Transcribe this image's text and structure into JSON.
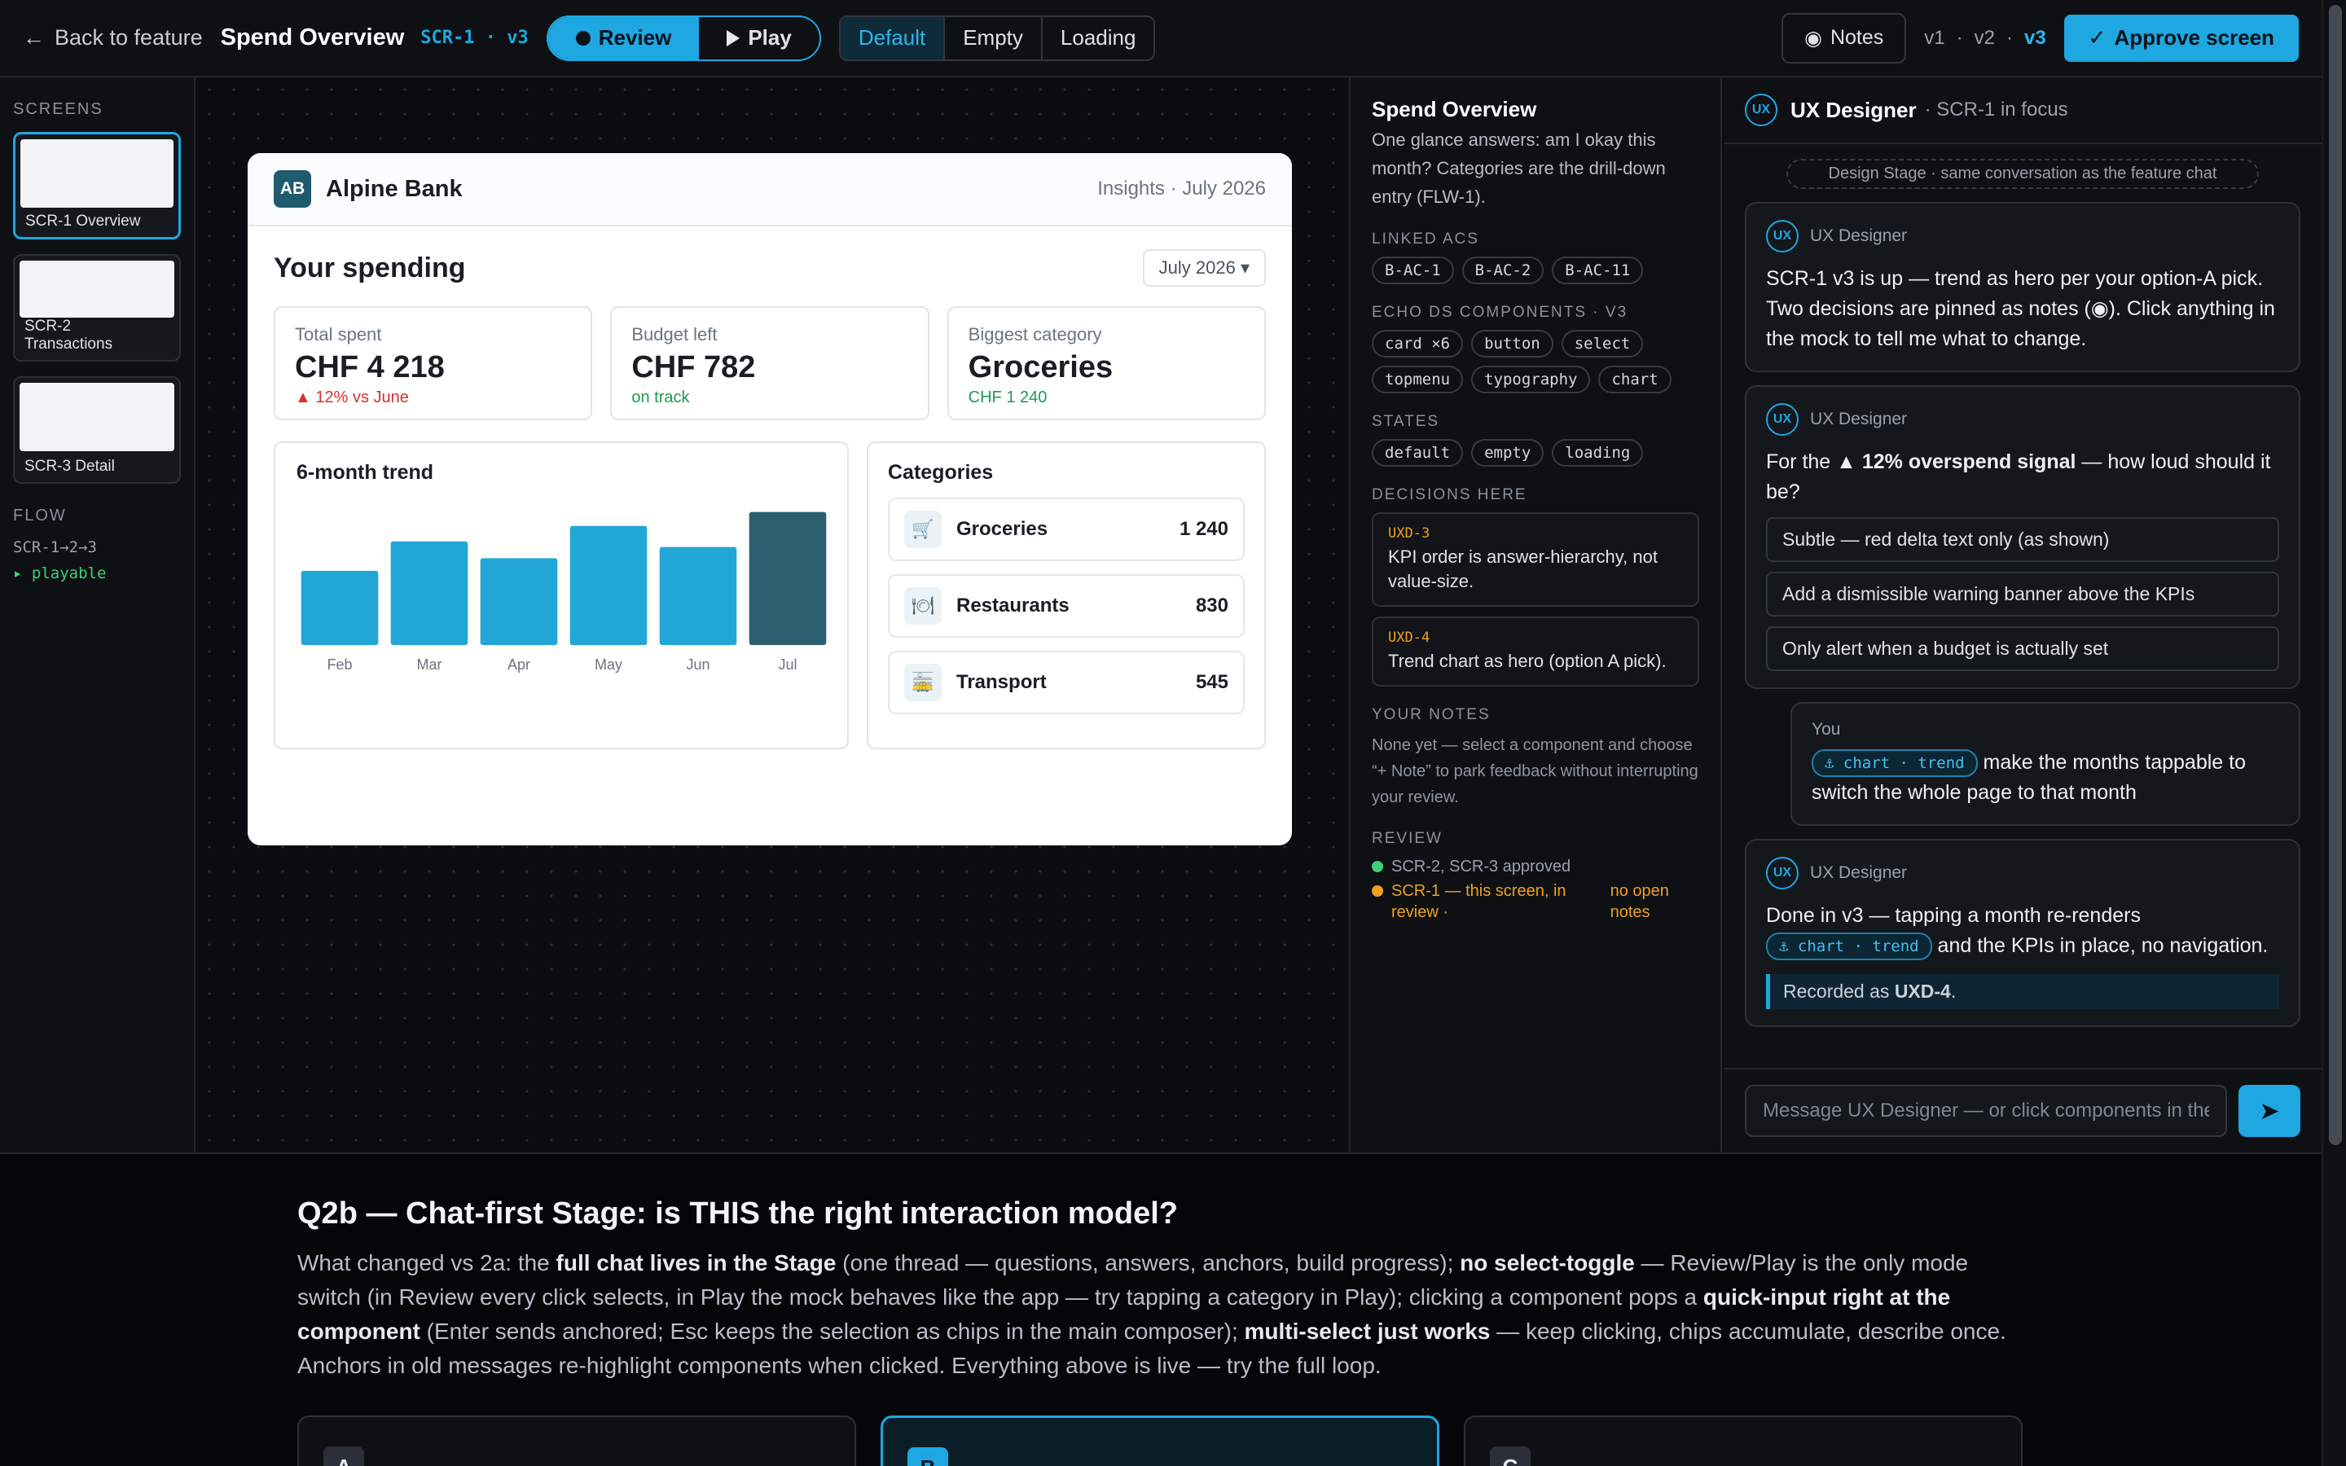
{
  "topbar": {
    "back_label": "Back to feature",
    "title": "Spend Overview",
    "screen_ref": "SCR-1 · v3",
    "mode_review": "Review",
    "mode_play": "Play",
    "states": [
      "Default",
      "Empty",
      "Loading"
    ],
    "active_state": "Default",
    "notes_label": "Notes",
    "versions": [
      "v1",
      "v2",
      "v3"
    ],
    "active_version": "v3",
    "approve_label": "Approve screen"
  },
  "left": {
    "screens_label": "SCREENS",
    "screens": [
      {
        "label": "SCR-1 Overview",
        "selected": true
      },
      {
        "label": "SCR-2 Transactions",
        "selected": false
      },
      {
        "label": "SCR-3 Detail",
        "selected": false
      }
    ],
    "flow_label": "FLOW",
    "flow_path": "SCR-1→2→3",
    "playable": "▸ playable"
  },
  "mock": {
    "logo": "AB",
    "bank_name": "Alpine Bank",
    "insights": "Insights · July 2026",
    "heading": "Your spending",
    "month_select": "July 2026 ▾",
    "kpis": [
      {
        "label": "Total spent",
        "value": "CHF 4 218",
        "sub": "▲ 12% vs June",
        "tone": "red"
      },
      {
        "label": "Budget left",
        "value": "CHF 782",
        "sub": "on track",
        "tone": "green"
      },
      {
        "label": "Biggest category",
        "value": "Groceries",
        "sub": "CHF 1 240",
        "tone": "green"
      }
    ],
    "trend_title": "6-month trend",
    "categories_title": "Categories",
    "categories": [
      {
        "name": "Groceries",
        "value": "1 240",
        "icon": "cart-icon"
      },
      {
        "name": "Restaurants",
        "value": "830",
        "icon": "fork-knife-icon"
      },
      {
        "name": "Transport",
        "value": "545",
        "icon": "tram-icon"
      }
    ]
  },
  "chart_data": {
    "type": "bar",
    "categories": [
      "Feb",
      "Mar",
      "Apr",
      "May",
      "Jun",
      "Jul"
    ],
    "values": [
      53,
      74,
      62,
      85,
      70,
      95
    ],
    "highlight": "Jul",
    "colors": {
      "bar": "#22a6d6",
      "highlight": "#2c5f70"
    }
  },
  "inspector": {
    "title": "Spend Overview",
    "description": "One glance answers: am I okay this month? Categories are the drill-down entry (FLW-1).",
    "linked_label": "LINKED ACS",
    "linked": [
      "B-AC-1",
      "B-AC-2",
      "B-AC-11"
    ],
    "components_label": "ECHO DS COMPONENTS · V3",
    "components": [
      "card ×6",
      "button",
      "select",
      "topmenu",
      "typography",
      "chart"
    ],
    "states_label": "STATES",
    "states": [
      "default",
      "empty",
      "loading"
    ],
    "decisions_label": "DECISIONS HERE",
    "decisions": [
      {
        "id": "UXD-3",
        "text": "KPI order is answer-hierarchy, not value-size."
      },
      {
        "id": "UXD-4",
        "text": "Trend chart as hero (option A pick)."
      }
    ],
    "notes_label": "YOUR NOTES",
    "notes_text": "None yet — select a component and choose “+ Note” to park feedback without interrupting your review.",
    "review_label": "REVIEW",
    "review_approved": "SCR-2, SCR-3 approved",
    "review_current": "SCR-1 — this screen, in review ·",
    "review_open": "no open notes"
  },
  "chat": {
    "agent_name": "UX Designer",
    "focus": "· SCR-1 in focus",
    "avatar": "UX",
    "stage_note": "Design Stage · same conversation as the feature chat",
    "m1": "SCR-1 v3 is up — trend as hero per your option-A pick. Two decisions are pinned as notes (◉). Click anything in the mock to tell me what to change.",
    "m2_pre": "For the ",
    "m2_bold": "▲ 12% overspend signal",
    "m2_post": " — how loud should it be?",
    "options": [
      "Subtle — red delta text only (as shown)",
      "Add a dismissible warning banner above the KPIs",
      "Only alert when a budget is actually set"
    ],
    "you_label": "You",
    "anchor": "⚓ chart · trend",
    "you_msg": "make the months tappable to switch the whole page to that month",
    "m3_pre": "Done in v3 — tapping a month re-renders",
    "m3_post": "and the KPIs in place, no navigation.",
    "recorded_pre": "Recorded as ",
    "recorded_id": "UXD-4",
    "recorded_post": ".",
    "composer_placeholder": "Message UX Designer — or click components in the mock"
  },
  "question": {
    "title": "Q2b — Chat-first Stage: is THIS the right interaction model?",
    "p1": "What changed vs 2a: the ",
    "b1": "full chat lives in the Stage",
    "p2": " (one thread — questions, answers, anchors, build progress); ",
    "b2": "no select-toggle",
    "p3": " — Review/Play is the only mode switch (in Review every click selects, in Play the mock behaves like the app — try tapping a category in Play); clicking a component pops a ",
    "b3": "quick-input right at the component",
    "p4": " (Enter sends anchored; Esc keeps the selection as chips in the main composer); ",
    "b4": "multi-select just works",
    "p5": " — keep clicking, chips accumulate, describe once. Anchors in old messages re-highlight components when clicked. Everything above is live — try the full loop.",
    "options": [
      "A",
      "B",
      "C"
    ],
    "selected": "B"
  }
}
